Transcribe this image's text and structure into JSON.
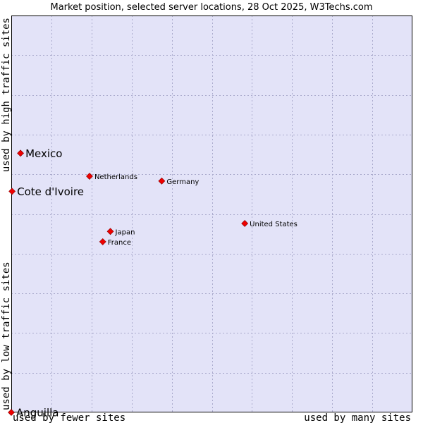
{
  "chart_data": {
    "type": "scatter",
    "title": "Market position, selected server locations, 28 Oct 2025, W3Techs.com",
    "x_label_low": "used by fewer sites",
    "x_label_high": "used by many sites",
    "y_label_low": "used by low traffic sites",
    "y_label_high": "used by high traffic sites",
    "xlim": [
      0,
      100
    ],
    "ylim": [
      0,
      100
    ],
    "grid": true,
    "colors": {
      "plot_bg": "#e3e3f8",
      "grid": "#aaaacc",
      "point": "#ee0000",
      "point_stroke": "#880000"
    },
    "points": [
      {
        "label": "Mexico",
        "x": 2.3,
        "y": 65.3,
        "large": true
      },
      {
        "label": "Cote d'Ivoire",
        "x": 0.2,
        "y": 55.7,
        "large": true
      },
      {
        "label": "Anguilla",
        "x": 0,
        "y": 0,
        "large": true
      },
      {
        "label": "Netherlands",
        "x": 19.5,
        "y": 59.5,
        "large": false
      },
      {
        "label": "Germany",
        "x": 37.5,
        "y": 58.3,
        "large": false
      },
      {
        "label": "United States",
        "x": 58.2,
        "y": 47.6,
        "large": false
      },
      {
        "label": "Japan",
        "x": 24.7,
        "y": 45.6,
        "large": false
      },
      {
        "label": "France",
        "x": 22.8,
        "y": 43.0,
        "large": false
      }
    ]
  }
}
